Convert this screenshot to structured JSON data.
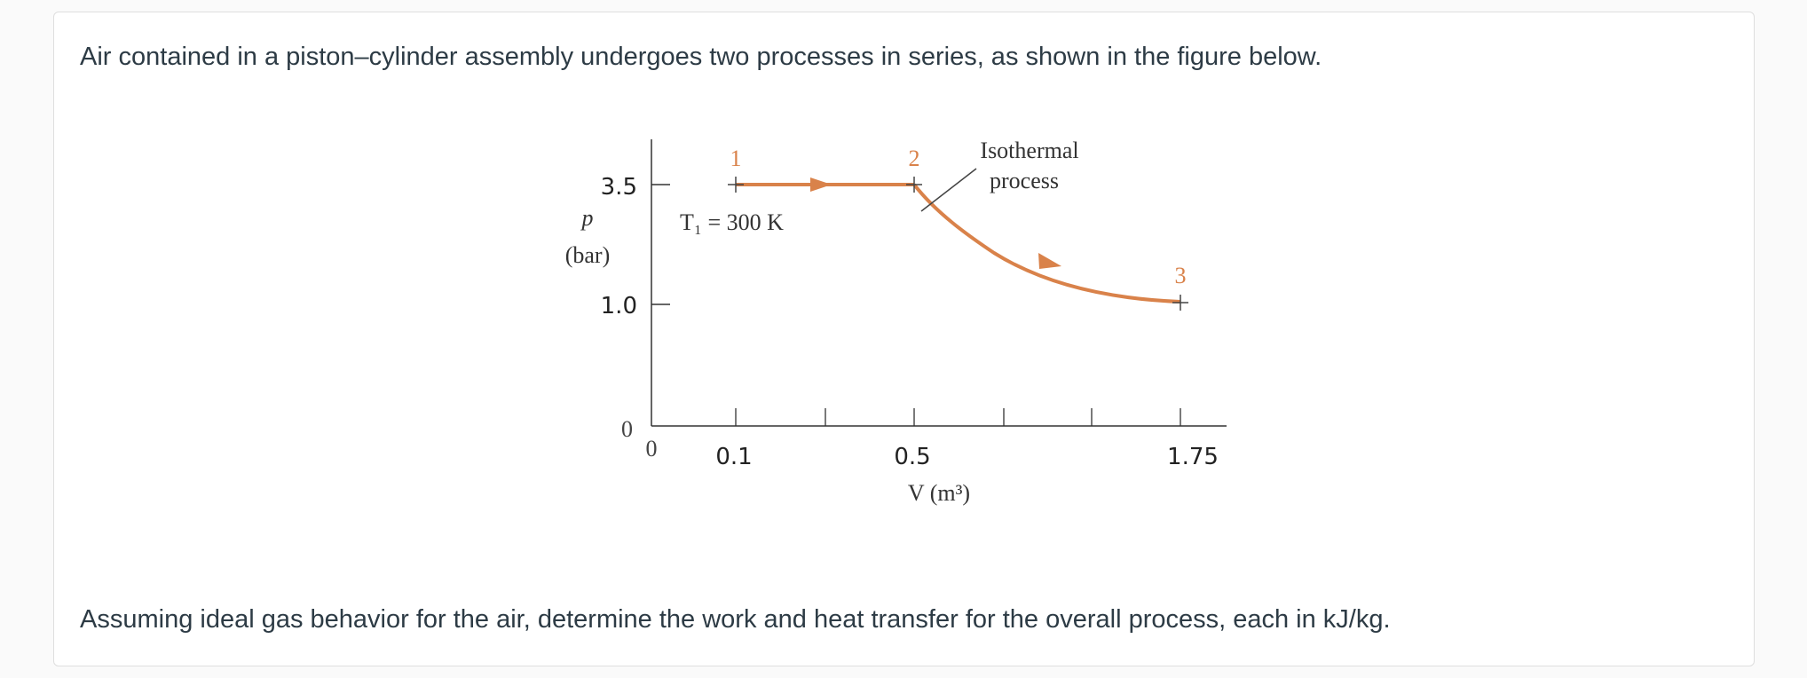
{
  "question": {
    "intro": "Air contained in a piston–cylinder assembly undergoes two processes in series, as shown in the figure below.",
    "outro": "Assuming ideal gas behavior for the air, determine the work and heat transfer for the overall process, each in kJ/kg."
  },
  "figure": {
    "y_axis": {
      "symbol": "p",
      "unit": "(bar)",
      "ticks": [
        "3.5",
        "1.0",
        "0"
      ]
    },
    "x_axis": {
      "label": "V (m³)",
      "ticks": [
        "0",
        "0.1",
        "0.5",
        "1.75"
      ]
    },
    "state_labels": [
      "1",
      "2",
      "3"
    ],
    "temperature_label": "T₁ = 300 K",
    "annotation_line1": "Isothermal",
    "annotation_line2": "process",
    "colors": {
      "process_path": "#d9824a",
      "state_label": "#d9824a",
      "axis": "#333333"
    }
  },
  "chart_data": {
    "type": "line",
    "points": [
      {
        "state": "1",
        "V": 0.1,
        "p": 3.5
      },
      {
        "state": "2",
        "V": 0.5,
        "p": 3.5
      },
      {
        "state": "3",
        "V": 1.75,
        "p": 1.0
      }
    ],
    "processes": [
      {
        "from": "1",
        "to": "2",
        "kind": "constant pressure"
      },
      {
        "from": "2",
        "to": "3",
        "kind": "isothermal"
      }
    ],
    "xlabel": "V (m³)",
    "ylabel": "p (bar)"
  }
}
